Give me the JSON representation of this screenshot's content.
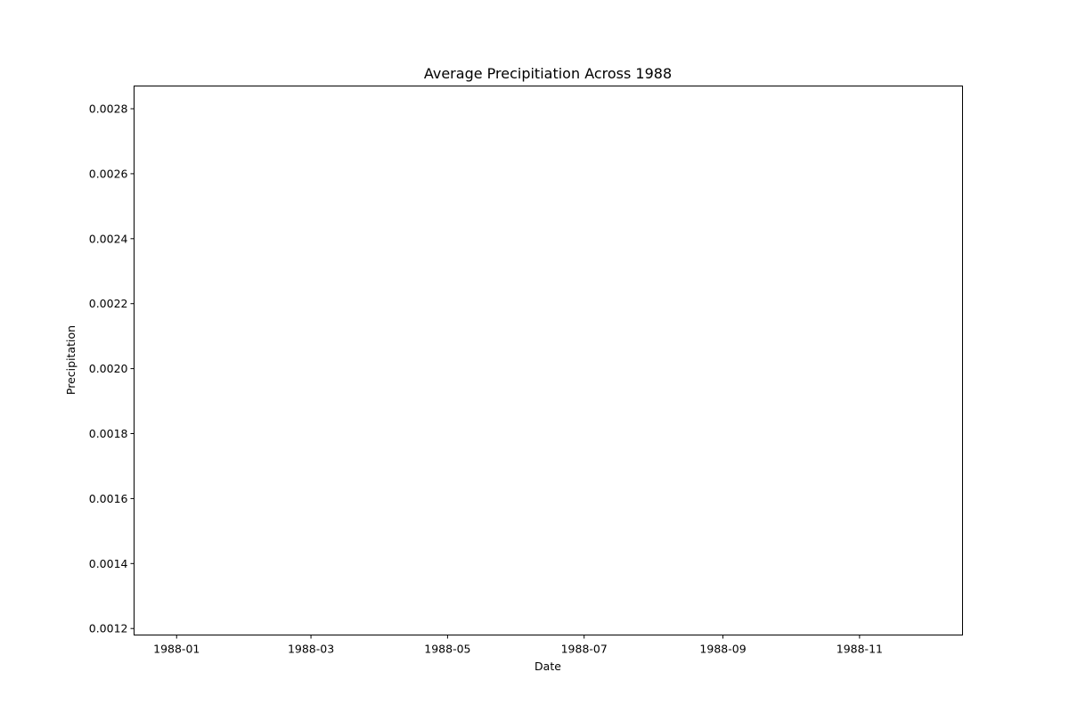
{
  "chart_data": {
    "type": "line",
    "title": "Average Precipitiation Across 1988",
    "xlabel": "Date",
    "ylabel": "Precipitation",
    "x_type": "date",
    "xlim": [
      "1987-12-13",
      "1988-12-17"
    ],
    "ylim": [
      0.00118,
      0.00287
    ],
    "x_ticks": [
      "1988-01-01",
      "1988-03-01",
      "1988-05-01",
      "1988-07-01",
      "1988-09-01",
      "1988-11-01"
    ],
    "x_tick_labels": [
      "1988-01",
      "1988-03",
      "1988-05",
      "1988-07",
      "1988-09",
      "1988-11"
    ],
    "y_ticks": [
      0.0012,
      0.0014,
      0.0016,
      0.0018,
      0.002,
      0.0022,
      0.0024,
      0.0026,
      0.0028
    ],
    "y_tick_labels": [
      "0.0012",
      "0.0014",
      "0.0016",
      "0.0018",
      "0.0020",
      "0.0022",
      "0.0024",
      "0.0026",
      "0.0028"
    ],
    "grid": false,
    "series": [
      {
        "values": []
      }
    ]
  }
}
